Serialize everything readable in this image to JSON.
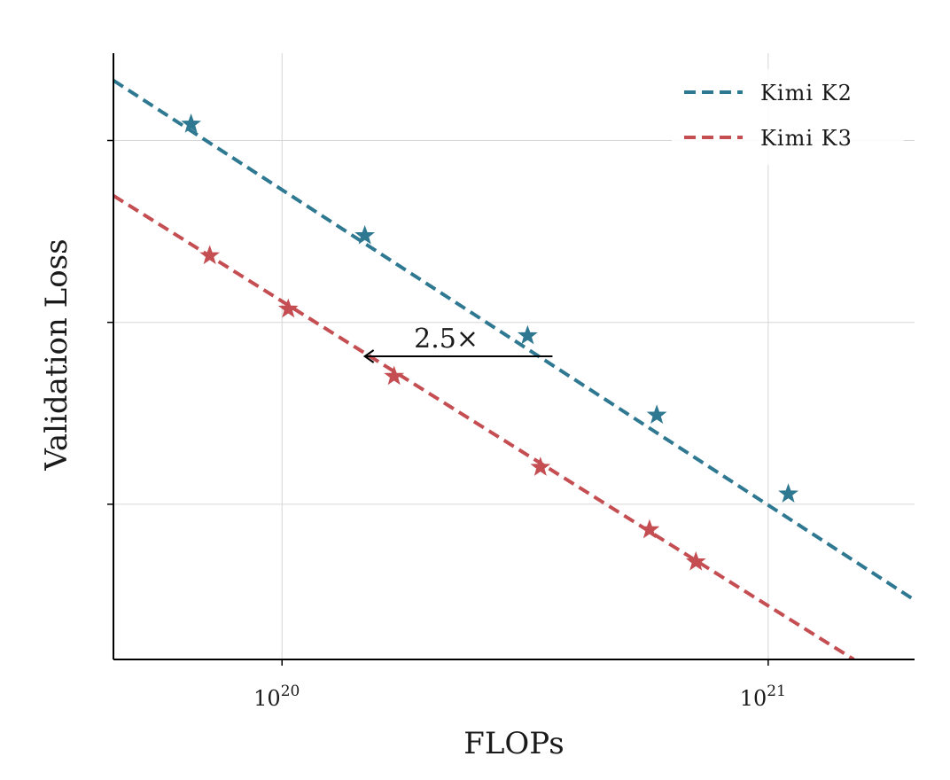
{
  "chart_data": {
    "type": "line",
    "xscale": "log",
    "xlabel": "FLOPs",
    "ylabel": "Validation Loss",
    "xlim": [
      4.5e+19,
      2e+21
    ],
    "ylim": [
      0,
      10
    ],
    "x_ticks": [
      {
        "value": 1e+20,
        "base": "10",
        "exp": "20"
      },
      {
        "value": 1e+21,
        "base": "10",
        "exp": "21"
      }
    ],
    "y_ticks": [
      2.56,
      5.56,
      8.56
    ],
    "y_tick_labels_shown": false,
    "grid": true,
    "legend_position": "top-right",
    "series": [
      {
        "name": "Kimi K2",
        "color": "#2e7891",
        "fit_line": {
          "x": [
            4.5e+19,
            2e+21
          ],
          "y": [
            9.55,
            0.98
          ]
        },
        "points": [
          {
            "x": 6.5e+19,
            "y": 8.83
          },
          {
            "x": 1.48e+20,
            "y": 6.99
          },
          {
            "x": 3.2e+20,
            "y": 5.34
          },
          {
            "x": 5.9e+20,
            "y": 4.03
          },
          {
            "x": 1.1e+21,
            "y": 2.73
          }
        ]
      },
      {
        "name": "Kimi K3",
        "color": "#c44e52",
        "fit_line": {
          "x": [
            4.5e+19,
            1.5e+21
          ],
          "y": [
            7.65,
            0.0
          ]
        },
        "points": [
          {
            "x": 7.1e+19,
            "y": 6.66
          },
          {
            "x": 1.03e+20,
            "y": 5.78
          },
          {
            "x": 1.7e+20,
            "y": 4.67
          },
          {
            "x": 3.4e+20,
            "y": 3.17
          },
          {
            "x": 5.7e+20,
            "y": 2.14
          },
          {
            "x": 7.1e+20,
            "y": 1.61
          }
        ]
      }
    ],
    "annotations": [
      {
        "text": "2.5×",
        "arrow_from": {
          "x": 3.6e+20,
          "y": 5.0
        },
        "arrow_to": {
          "x": 1.48e+20,
          "y": 5.0
        }
      }
    ]
  }
}
